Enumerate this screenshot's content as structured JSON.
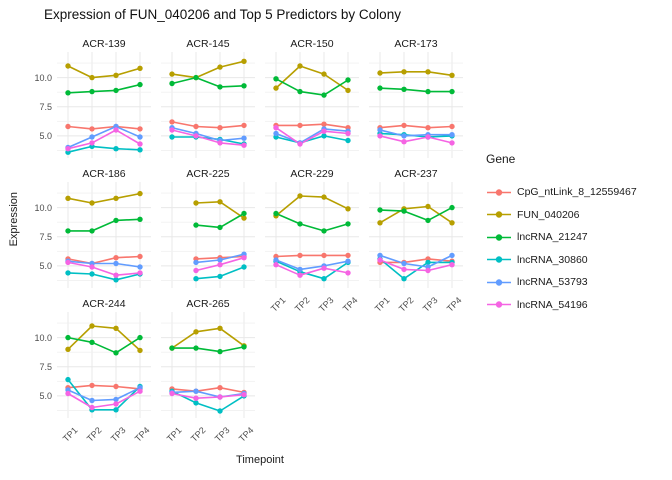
{
  "chart_data": {
    "type": "line",
    "title": "Expression of FUN_040206 and Top 5 Predictors by Colony",
    "xlabel": "Timepoint",
    "ylabel": "Expression",
    "legend_title": "Gene",
    "legend_position": "right",
    "grid": true,
    "x_categories": [
      "TP1",
      "TP2",
      "TP3",
      "TP4"
    ],
    "ylim": [
      3.1,
      12.2
    ],
    "y_ticks": [
      {
        "value": 10.0,
        "label": "10.0"
      },
      {
        "value": 7.5,
        "label": "7.5"
      },
      {
        "value": 5.0,
        "label": "5.0"
      }
    ],
    "y_minor_ticks": [
      3.75,
      6.25,
      8.75,
      11.25
    ],
    "genes": [
      {
        "name": "CpG_ntLink_8_12559467",
        "color": "#F8766D"
      },
      {
        "name": "FUN_040206",
        "color": "#B79F00"
      },
      {
        "name": "lncRNA_21247",
        "color": "#00BA38"
      },
      {
        "name": "lncRNA_30860",
        "color": "#00BFC4"
      },
      {
        "name": "lncRNA_53793",
        "color": "#619CFF"
      },
      {
        "name": "lncRNA_54196",
        "color": "#F564E3"
      }
    ],
    "facets": [
      {
        "title": "ACR-139",
        "series": [
          [
            5.8,
            5.6,
            5.8,
            5.6
          ],
          [
            11.0,
            10.0,
            10.2,
            10.8
          ],
          [
            8.7,
            8.8,
            8.9,
            9.4
          ],
          [
            3.6,
            4.1,
            3.9,
            3.8
          ],
          [
            4.0,
            4.9,
            5.8,
            4.9
          ],
          [
            3.9,
            4.4,
            5.5,
            4.3
          ]
        ]
      },
      {
        "title": "ACR-145",
        "series": [
          [
            6.2,
            5.8,
            5.7,
            5.9
          ],
          [
            10.3,
            10.0,
            10.9,
            11.4
          ],
          [
            9.5,
            10.0,
            9.2,
            9.3
          ],
          [
            4.9,
            4.9,
            4.7,
            4.3
          ],
          [
            5.7,
            5.2,
            4.6,
            4.8
          ],
          [
            5.5,
            5.0,
            4.4,
            4.2
          ]
        ]
      },
      {
        "title": "ACR-150",
        "series": [
          [
            5.9,
            5.9,
            6.0,
            5.7
          ],
          [
            9.1,
            11.0,
            10.3,
            8.9
          ],
          [
            9.9,
            8.8,
            8.5,
            9.8
          ],
          [
            4.9,
            4.4,
            5.0,
            4.6
          ],
          [
            5.2,
            4.4,
            5.6,
            5.4
          ],
          [
            5.7,
            4.3,
            5.4,
            5.2
          ]
        ]
      },
      {
        "title": "ACR-173",
        "series": [
          [
            5.7,
            5.9,
            5.7,
            5.8
          ],
          [
            10.4,
            10.5,
            10.5,
            10.2
          ],
          [
            9.1,
            9.0,
            8.8,
            8.8
          ],
          [
            5.2,
            5.1,
            4.9,
            5.0
          ],
          [
            5.5,
            5.0,
            5.1,
            5.1
          ],
          [
            5.0,
            4.5,
            4.9,
            4.4
          ]
        ]
      },
      {
        "title": "ACR-186",
        "series": [
          [
            5.6,
            5.2,
            5.7,
            5.8
          ],
          [
            10.8,
            10.4,
            10.8,
            11.2
          ],
          [
            8.0,
            8.0,
            8.9,
            9.0
          ],
          [
            4.4,
            4.3,
            3.8,
            4.3
          ],
          [
            5.4,
            5.2,
            5.2,
            4.9
          ],
          [
            5.3,
            4.9,
            4.2,
            4.4
          ]
        ]
      },
      {
        "title": "ACR-225",
        "series": [
          [
            null,
            5.6,
            5.7,
            5.8
          ],
          [
            null,
            10.4,
            10.5,
            9.1
          ],
          [
            null,
            8.5,
            8.3,
            9.5
          ],
          [
            null,
            3.9,
            4.1,
            4.9
          ],
          [
            null,
            5.3,
            5.5,
            6.0
          ],
          [
            null,
            4.6,
            5.1,
            5.7
          ]
        ]
      },
      {
        "title": "ACR-229",
        "series": [
          [
            5.8,
            5.9,
            5.9,
            5.9
          ],
          [
            9.3,
            11.0,
            10.9,
            9.9
          ],
          [
            9.5,
            8.6,
            8.0,
            8.6
          ],
          [
            5.4,
            4.5,
            3.9,
            5.3
          ],
          [
            5.5,
            4.7,
            5.0,
            5.4
          ],
          [
            5.1,
            4.2,
            4.8,
            4.4
          ]
        ]
      },
      {
        "title": "ACR-237",
        "series": [
          [
            5.3,
            5.3,
            5.6,
            5.4
          ],
          [
            8.7,
            9.9,
            10.1,
            8.7
          ],
          [
            9.8,
            9.7,
            8.9,
            10.0
          ],
          [
            5.6,
            3.9,
            5.3,
            5.3
          ],
          [
            5.9,
            5.2,
            4.9,
            5.9
          ],
          [
            5.5,
            4.7,
            4.6,
            5.1
          ]
        ]
      },
      {
        "title": "ACR-244",
        "series": [
          [
            5.7,
            5.9,
            5.8,
            5.6
          ],
          [
            9.0,
            11.0,
            10.8,
            8.9
          ],
          [
            10.0,
            9.6,
            8.7,
            10.0
          ],
          [
            6.4,
            3.8,
            3.8,
            5.8
          ],
          [
            5.5,
            4.6,
            4.7,
            5.7
          ],
          [
            5.2,
            4.0,
            4.3,
            5.4
          ]
        ]
      },
      {
        "title": "ACR-265",
        "series": [
          [
            5.6,
            5.4,
            5.7,
            5.3
          ],
          [
            9.1,
            10.5,
            10.8,
            9.3
          ],
          [
            9.1,
            9.1,
            8.8,
            9.2
          ],
          [
            5.4,
            4.4,
            3.7,
            5.0
          ],
          [
            5.3,
            5.4,
            4.9,
            5.2
          ],
          [
            5.2,
            4.8,
            4.9,
            5.1
          ]
        ]
      }
    ]
  }
}
